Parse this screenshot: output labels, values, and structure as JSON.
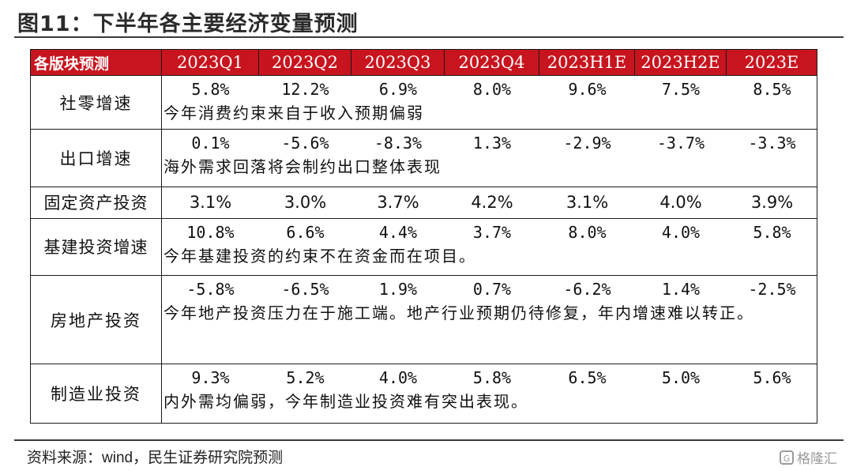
{
  "title": "图11：下半年各主要经济变量预测",
  "table": {
    "headers": [
      "各版块预测",
      "2023Q1",
      "2023Q2",
      "2023Q3",
      "2023Q4",
      "2023H1E",
      "2023H2E",
      "2023E"
    ],
    "rows": [
      {
        "label": "社零增速",
        "values": [
          "5.8%",
          "12.2%",
          "6.9%",
          "8.0%",
          "9.6%",
          "7.5%",
          "8.5%"
        ],
        "note": "今年消费约束来自于收入预期偏弱"
      },
      {
        "label": "出口增速",
        "values": [
          "0.1%",
          "-5.6%",
          "-8.3%",
          "1.3%",
          "-2.9%",
          "-3.7%",
          "-3.3%"
        ],
        "note": "海外需求回落将会制约出口整体表现"
      },
      {
        "label": "固定资产投资",
        "values": [
          "3.1%",
          "3.0%",
          "3.7%",
          "4.2%",
          "3.1%",
          "4.0%",
          "3.9%"
        ],
        "note": ""
      },
      {
        "label": "基建投资增速",
        "values": [
          "10.8%",
          "6.6%",
          "4.4%",
          "3.7%",
          "8.0%",
          "4.0%",
          "5.8%"
        ],
        "note": "今年基建投资的约束不在资金而在项目。"
      },
      {
        "label": "房地产投资",
        "values": [
          "-5.8%",
          "-6.5%",
          "1.9%",
          "0.7%",
          "-6.2%",
          "1.4%",
          "-2.5%"
        ],
        "note": "今年地产投资压力在于施工端。地产行业预期仍待修复，年内增速难以转正。"
      },
      {
        "label": "制造业投资",
        "values": [
          "9.3%",
          "5.2%",
          "4.0%",
          "5.8%",
          "6.5%",
          "5.0%",
          "5.6%"
        ],
        "note": "内外需均偏弱，今年制造业投资难有突出表现。"
      }
    ]
  },
  "source": "资料来源：wind，民生证券研究院预测",
  "watermark": "格隆汇",
  "colors": {
    "header_bg": "#c8141e",
    "header_text": "#ffffff",
    "rule": "#3a3a3a"
  }
}
